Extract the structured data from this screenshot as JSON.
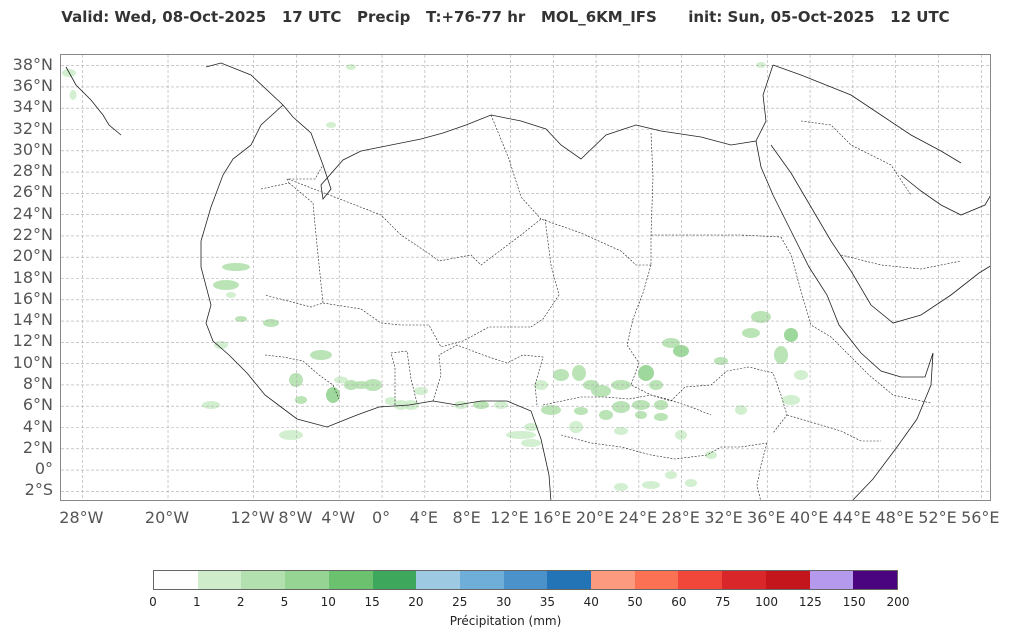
{
  "header": {
    "valid": "Valid: Wed, 08-Oct-2025   17 UTC",
    "field": "Precip",
    "lead": "T:+76-77 hr",
    "model": "MOL_6KM_IFS",
    "init": "init: Sun, 05-Oct-2025   12 UTC"
  },
  "map": {
    "lat_labels": [
      "38°N",
      "36°N",
      "34°N",
      "32°N",
      "30°N",
      "28°N",
      "26°N",
      "24°N",
      "22°N",
      "20°N",
      "18°N",
      "16°N",
      "14°N",
      "12°N",
      "10°N",
      "8°N",
      "6°N",
      "4°N",
      "2°N",
      "0°",
      "2°S"
    ],
    "lon_labels": [
      "28°W",
      "20°W",
      "12°W",
      "8°W",
      "4°W",
      "0°",
      "4°E",
      "8°E",
      "12°E",
      "16°E",
      "20°E",
      "24°E",
      "28°E",
      "32°E",
      "36°E",
      "40°E",
      "44°E",
      "48°E",
      "52°E",
      "56°E"
    ],
    "extent": {
      "lon_min": -30,
      "lon_max": 57,
      "lat_min": -3,
      "lat_max": 39
    },
    "grid_color": "#aaaaaa",
    "coast_color": "#222222"
  },
  "colorbar": {
    "ticks": [
      "0",
      "1",
      "2",
      "5",
      "10",
      "15",
      "20",
      "25",
      "30",
      "35",
      "40",
      "50",
      "60",
      "75",
      "100",
      "125",
      "150",
      "200"
    ],
    "colors": [
      "#ffffff",
      "#cdedcb",
      "#b2e0ae",
      "#95d492",
      "#6cc16f",
      "#3da85b",
      "#9dc9e2",
      "#6eaed9",
      "#4a92c9",
      "#2374b7",
      "#fb9a7e",
      "#fa7153",
      "#f1473a",
      "#d9262b",
      "#c4141c",
      "#b599ed",
      "#4b0480"
    ],
    "label": "Précipitation (mm)"
  }
}
